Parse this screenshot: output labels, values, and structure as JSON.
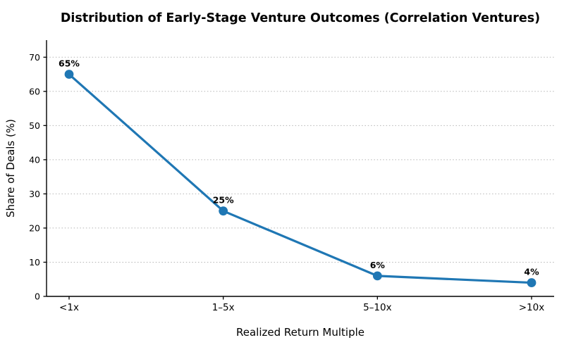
{
  "chart_data": {
    "type": "line",
    "title": "Distribution of Early-Stage Venture Outcomes (Correlation Ventures)",
    "xlabel": "Realized Return Multiple",
    "ylabel": "Share of Deals (%)",
    "categories": [
      "<1x",
      "1–5x",
      "5–10x",
      ">10x"
    ],
    "values": [
      65,
      25,
      6,
      4
    ],
    "point_labels": [
      "65%",
      "25%",
      "6%",
      "4%"
    ],
    "yticks": [
      0,
      10,
      20,
      30,
      40,
      50,
      60,
      70
    ],
    "ylim": [
      0,
      75
    ],
    "grid": "horizontal-dotted",
    "legend": "none",
    "line_color": "#1f77b4",
    "marker": "circle",
    "grid_color": "#b5b5b5",
    "spine_color": "#000000",
    "background": "#ffffff"
  }
}
